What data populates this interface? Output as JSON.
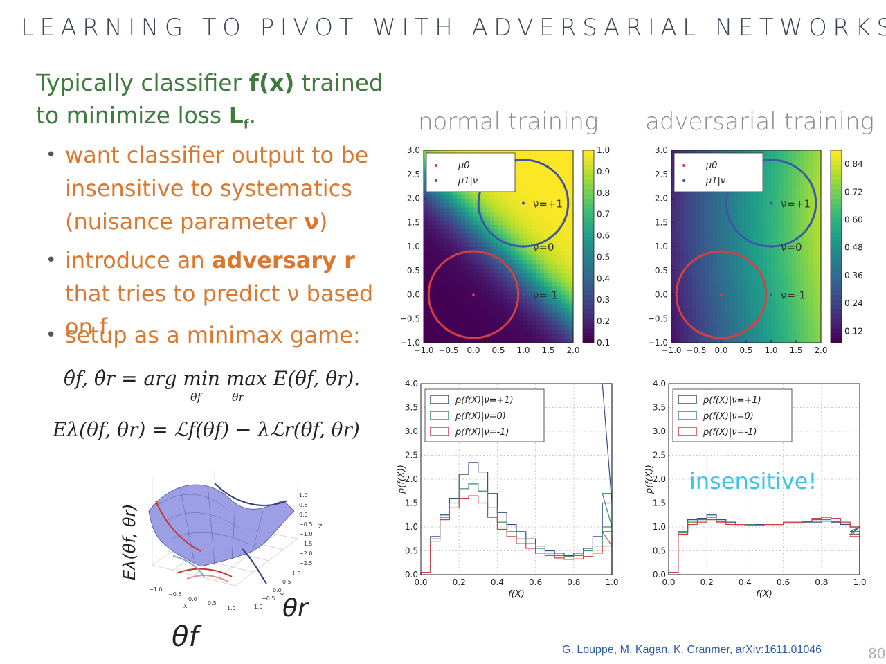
{
  "slide": {
    "title": "LEARNING TO PIVOT WITH ADVERSARIAL NETWORKS",
    "intro": {
      "p1": "Typically classifier ",
      "b1": "f(x)",
      "p2": " trained to minimize loss ",
      "b2": "L",
      "sub": "f",
      "p3": "."
    },
    "bullets": [
      {
        "p1": "want classifier output to be insensitive to systematics (nuisance parameter ",
        "b": "ν",
        "p2": ")"
      },
      {
        "p1": "introduce an ",
        "b": "adversary r",
        "p2": " that tries to predict ν based on f."
      },
      {
        "p1": "setup as a minimax game:",
        "b": "",
        "p2": ""
      }
    ],
    "eq1": "θ̂f, θ̂r = arg min max E(θf, θr).",
    "eq1_under1": "θf",
    "eq1_under2": "θr",
    "eq2": "Eλ(θf, θr) = ℒf(θf) − λℒr(θf, θr)",
    "surface": {
      "zlabel": "Eλ(θf, θr)",
      "xlabel": "θf",
      "ylabel": "θr",
      "ztick": [
        "1.0",
        "0.5",
        "0.0",
        "−0.5",
        "−1.0",
        "−1.5",
        "−2.0",
        "−2.5"
      ],
      "ztitle": "Z",
      "xticks": [
        "−1.0",
        "−0.5",
        "0.0",
        "0.5",
        "1.0"
      ],
      "xtitle": "X",
      "yticks": [
        "1.0",
        "0.5",
        "0.0",
        "−0.5",
        "−1.0"
      ],
      "ytitle": "Y"
    },
    "headers": {
      "left": "normal training",
      "right": "adversarial training"
    },
    "annotation": "insensitive!",
    "citation": "G. Louppe, M. Kagan, K. Cranmer, arXiv:1611.01046",
    "page_number": "80"
  },
  "chart_data": [
    {
      "type": "heatmap",
      "title": "normal training",
      "xlim": [
        -1.0,
        2.0
      ],
      "ylim": [
        -1.0,
        3.0
      ],
      "xticks": [
        "−1.0",
        "−0.5",
        "0.0",
        "0.5",
        "1.0",
        "1.5",
        "2.0"
      ],
      "yticks": [
        "−1.0",
        "−0.5",
        "0.0",
        "0.5",
        "1.0",
        "1.5",
        "2.0",
        "2.5",
        "3.0"
      ],
      "colorbar": [
        "0.1",
        "0.2",
        "0.3",
        "0.4",
        "0.5",
        "0.6",
        "0.7",
        "0.8",
        "0.9",
        "1.0"
      ],
      "legend": [
        "μ0",
        "μ1|ν"
      ],
      "points": [
        {
          "label": "ν=+1",
          "x": 1.0,
          "y": 1.9
        },
        {
          "label": "ν=0",
          "x": 1.0,
          "y": 1.0
        },
        {
          "label": "ν=-1",
          "x": 1.0,
          "y": 0.0
        }
      ],
      "circles": [
        {
          "cx": 0.0,
          "cy": 0.0,
          "r": 0.9,
          "color": "red"
        },
        {
          "cx": 1.0,
          "cy": 1.9,
          "r": 0.9,
          "color": "blue"
        }
      ]
    },
    {
      "type": "heatmap",
      "title": "adversarial training",
      "xlim": [
        -1.0,
        2.0
      ],
      "ylim": [
        -1.0,
        3.0
      ],
      "xticks": [
        "−1.0",
        "−0.5",
        "0.0",
        "0.5",
        "1.0",
        "1.5",
        "2.0"
      ],
      "yticks": [
        "−1.0",
        "−0.5",
        "0.0",
        "0.5",
        "1.0",
        "1.5",
        "2.0",
        "2.5",
        "3.0"
      ],
      "colorbar": [
        "0.12",
        "0.24",
        "0.36",
        "0.48",
        "0.60",
        "0.72",
        "0.84"
      ],
      "legend": [
        "μ0",
        "μ1|ν"
      ],
      "points": [
        {
          "label": "ν=+1",
          "x": 1.0,
          "y": 1.9
        },
        {
          "label": "ν=0",
          "x": 1.0,
          "y": 1.0
        },
        {
          "label": "ν=-1",
          "x": 1.0,
          "y": 0.0
        }
      ],
      "circles": [
        {
          "cx": 0.0,
          "cy": 0.0,
          "r": 0.9,
          "color": "red"
        },
        {
          "cx": 1.0,
          "cy": 1.9,
          "r": 0.9,
          "color": "blue"
        }
      ]
    },
    {
      "type": "line",
      "xlabel": "f(X)",
      "ylabel": "p(f(X))",
      "xlim": [
        0.0,
        1.0
      ],
      "ylim": [
        0.0,
        4.0
      ],
      "xticks": [
        "0.0",
        "0.2",
        "0.4",
        "0.6",
        "0.8",
        "1.0"
      ],
      "yticks": [
        "0.0",
        "0.5",
        "1.0",
        "1.5",
        "2.0",
        "2.5",
        "3.0",
        "3.5",
        "4.0"
      ],
      "x": [
        0.0,
        0.05,
        0.1,
        0.15,
        0.2,
        0.25,
        0.3,
        0.35,
        0.4,
        0.45,
        0.5,
        0.55,
        0.6,
        0.65,
        0.7,
        0.75,
        0.8,
        0.85,
        0.9,
        0.95,
        1.0
      ],
      "series": [
        {
          "name": "p(f(X)|ν=+1)",
          "color": "#3a4a8c",
          "values": [
            0.05,
            0.8,
            1.25,
            1.6,
            2.1,
            2.35,
            2.15,
            1.7,
            1.3,
            1.05,
            0.9,
            0.75,
            0.6,
            0.5,
            0.45,
            0.4,
            0.45,
            0.55,
            0.8,
            1.5,
            4.0
          ]
        },
        {
          "name": "p(f(X)|ν=0)",
          "color": "#3c8a6a",
          "values": [
            0.05,
            0.75,
            1.2,
            1.5,
            1.8,
            1.9,
            1.75,
            1.4,
            1.1,
            0.9,
            0.75,
            0.65,
            0.55,
            0.45,
            0.4,
            0.38,
            0.4,
            0.5,
            0.6,
            1.0,
            1.7
          ]
        },
        {
          "name": "p(f(X)|ν=-1)",
          "color": "#d63c3c",
          "values": [
            0.05,
            0.7,
            1.15,
            1.4,
            1.6,
            1.65,
            1.5,
            1.2,
            0.95,
            0.8,
            0.65,
            0.55,
            0.45,
            0.4,
            0.35,
            0.32,
            0.33,
            0.38,
            0.45,
            0.6,
            0.9
          ]
        }
      ]
    },
    {
      "type": "line",
      "xlabel": "f(X)",
      "ylabel": "p(f(X))",
      "xlim": [
        0.0,
        1.0
      ],
      "ylim": [
        0.0,
        4.0
      ],
      "xticks": [
        "0.0",
        "0.2",
        "0.4",
        "0.6",
        "0.8",
        "1.0"
      ],
      "yticks": [
        "0.0",
        "0.5",
        "1.0",
        "1.5",
        "2.0",
        "2.5",
        "3.0",
        "3.5",
        "4.0"
      ],
      "x": [
        0.0,
        0.05,
        0.1,
        0.15,
        0.2,
        0.25,
        0.3,
        0.35,
        0.4,
        0.45,
        0.5,
        0.55,
        0.6,
        0.65,
        0.7,
        0.75,
        0.8,
        0.85,
        0.9,
        0.95,
        1.0
      ],
      "series": [
        {
          "name": "p(f(X)|ν=+1)",
          "color": "#3a4a8c",
          "values": [
            0.05,
            0.9,
            1.15,
            1.18,
            1.25,
            1.15,
            1.1,
            1.05,
            1.05,
            1.05,
            1.05,
            1.05,
            1.08,
            1.08,
            1.1,
            1.1,
            1.12,
            1.1,
            1.05,
            1.0,
            0.9
          ]
        },
        {
          "name": "p(f(X)|ν=0)",
          "color": "#3c8a6a",
          "values": [
            0.05,
            0.88,
            1.1,
            1.15,
            1.2,
            1.12,
            1.08,
            1.05,
            1.05,
            1.03,
            1.05,
            1.05,
            1.08,
            1.1,
            1.12,
            1.15,
            1.15,
            1.12,
            1.08,
            1.0,
            0.85
          ]
        },
        {
          "name": "p(f(X)|ν=-1)",
          "color": "#d63c3c",
          "values": [
            0.05,
            0.85,
            1.05,
            1.1,
            1.15,
            1.1,
            1.05,
            1.05,
            1.03,
            1.03,
            1.05,
            1.05,
            1.1,
            1.1,
            1.12,
            1.18,
            1.2,
            1.18,
            1.1,
            1.0,
            0.8
          ]
        }
      ]
    }
  ]
}
